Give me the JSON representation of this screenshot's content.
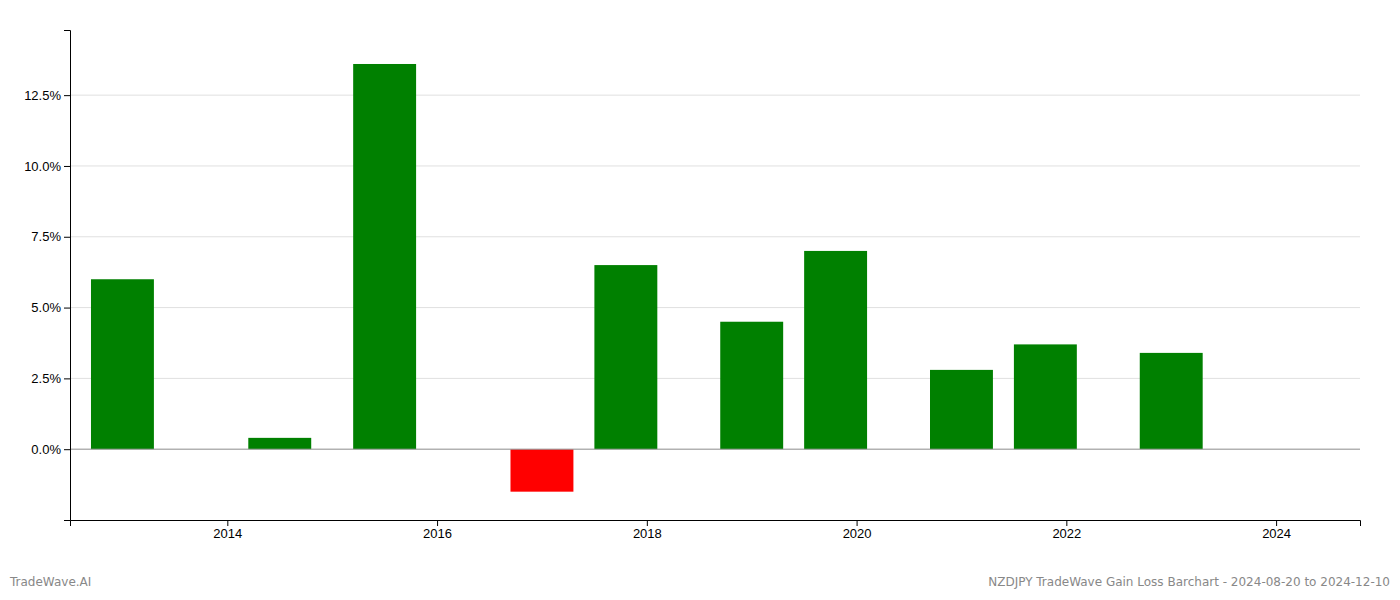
{
  "chart_data": {
    "type": "bar",
    "x": [
      2013.0,
      2014.5,
      2015.5,
      2017.0,
      2017.8,
      2019.0,
      2019.8,
      2021.0,
      2021.8,
      2023.0
    ],
    "values": [
      0.06,
      0.004,
      0.136,
      -0.015,
      0.065,
      0.045,
      0.07,
      0.028,
      0.037,
      0.034
    ],
    "colors": [
      "#008000",
      "#008000",
      "#008000",
      "#ff0000",
      "#008000",
      "#008000",
      "#008000",
      "#008000",
      "#008000",
      "#008000"
    ],
    "xlim": [
      2012.5,
      2024.8
    ],
    "xticks": [
      2014,
      2016,
      2018,
      2020,
      2022,
      2024
    ],
    "ylim": [
      -0.025,
      0.148
    ],
    "yticks": [
      {
        "value": 0.0,
        "label": "0.0%"
      },
      {
        "value": 0.025,
        "label": "2.5%"
      },
      {
        "value": 0.05,
        "label": "5.0%"
      },
      {
        "value": 0.075,
        "label": "7.5%"
      },
      {
        "value": 0.1,
        "label": "10.0%"
      },
      {
        "value": 0.125,
        "label": "12.5%"
      }
    ],
    "grid": true,
    "annotations": [
      "TradeWave.AI",
      "NZDJPY TradeWave Gain Loss Barchart - 2024-08-20 to 2024-12-10"
    ]
  }
}
